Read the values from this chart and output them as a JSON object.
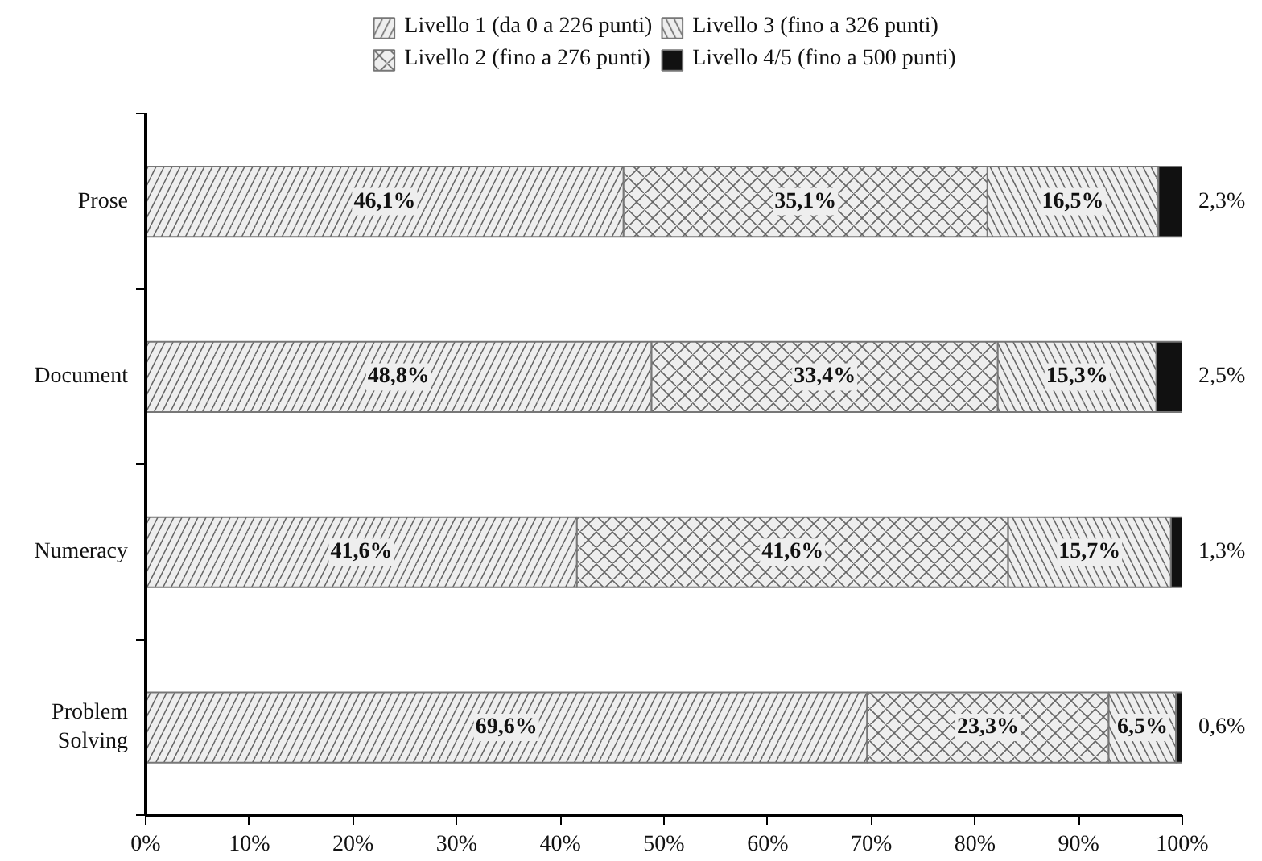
{
  "chart_data": {
    "type": "bar",
    "orientation": "horizontal",
    "stacked": true,
    "categories": [
      "Prose",
      "Document",
      "Numeracy",
      "Problem\nSolving"
    ],
    "series": [
      {
        "name": "Livello 1 (da 0 a 226 punti)",
        "color": "#eeeeee",
        "values": [
          46.1,
          48.8,
          41.6,
          69.6
        ],
        "value_labels": [
          "46,1%",
          "48,8%",
          "41,6%",
          "69,6%"
        ]
      },
      {
        "name": "Livello 2 (fino a 276 punti)",
        "color": "#eeeeee",
        "values": [
          35.1,
          33.4,
          41.6,
          23.3
        ],
        "value_labels": [
          "35,1%",
          "33,4%",
          "41,6%",
          "23,3%"
        ]
      },
      {
        "name": "Livello 3 (fino a 326 punti)",
        "color": "#eeeeee",
        "values": [
          16.5,
          15.3,
          15.7,
          6.5
        ],
        "value_labels": [
          "16,5%",
          "15,3%",
          "15,7%",
          "6,5%"
        ]
      },
      {
        "name": "Livello 4/5 (fino a 500 punti)",
        "color": "#111111",
        "values": [
          2.3,
          2.5,
          1.3,
          0.6
        ],
        "value_labels": [
          "2,3%",
          "2,5%",
          "1,3%",
          "0,6%"
        ]
      }
    ],
    "xlim": [
      0,
      100
    ],
    "xticks": [
      {
        "value": 0,
        "label": "0%"
      },
      {
        "value": 10,
        "label": "10%"
      },
      {
        "value": 20,
        "label": "20%"
      },
      {
        "value": 30,
        "label": "30%"
      },
      {
        "value": 40,
        "label": "40%"
      },
      {
        "value": 50,
        "label": "50%"
      },
      {
        "value": 60,
        "label": "60%"
      },
      {
        "value": 70,
        "label": "70%"
      },
      {
        "value": 80,
        "label": "80%"
      },
      {
        "value": 90,
        "label": "90%"
      },
      {
        "value": 100,
        "label": "100%"
      }
    ],
    "grid": false,
    "legend": "top"
  }
}
